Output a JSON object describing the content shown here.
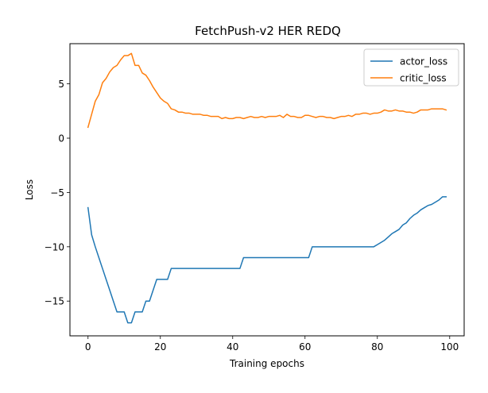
{
  "chart_data": {
    "type": "line",
    "title": "FetchPush-v2 HER REDQ",
    "xlabel": "Training epochs",
    "ylabel": "Loss",
    "xlim": [
      -5,
      104
    ],
    "ylim": [
      -18.2,
      8.7
    ],
    "xticks": [
      0,
      20,
      40,
      60,
      80,
      100
    ],
    "yticks": [
      -15,
      -10,
      -5,
      0,
      5
    ],
    "ytick_labels": [
      "−15",
      "−10",
      "−5",
      "0",
      "5"
    ],
    "grid": false,
    "legend_position": "top-right",
    "series": [
      {
        "name": "actor_loss",
        "color": "#1f77b4",
        "x": [
          0,
          1,
          2,
          3,
          4,
          5,
          6,
          7,
          8,
          9,
          10,
          11,
          12,
          13,
          14,
          15,
          16,
          17,
          18,
          19,
          20,
          21,
          22,
          23,
          24,
          25,
          26,
          27,
          28,
          29,
          30,
          31,
          32,
          33,
          34,
          35,
          36,
          37,
          38,
          39,
          40,
          41,
          42,
          43,
          44,
          45,
          46,
          47,
          48,
          49,
          50,
          51,
          52,
          53,
          54,
          55,
          56,
          57,
          58,
          59,
          60,
          61,
          62,
          63,
          64,
          65,
          66,
          67,
          68,
          69,
          70,
          71,
          72,
          73,
          74,
          75,
          76,
          77,
          78,
          79,
          80,
          81,
          82,
          83,
          84,
          85,
          86,
          87,
          88,
          89,
          90,
          91,
          92,
          93,
          94,
          95,
          96,
          97,
          98,
          99
        ],
        "y": [
          -6.4,
          -8.9,
          -10.0,
          -11.0,
          -12.0,
          -13.0,
          -14.0,
          -15.0,
          -16.0,
          -16.0,
          -16.0,
          -17.0,
          -17.0,
          -16.0,
          -16.0,
          -16.0,
          -15.0,
          -15.0,
          -14.0,
          -13.0,
          -13.0,
          -13.0,
          -13.0,
          -12.0,
          -12.0,
          -12.0,
          -12.0,
          -12.0,
          -12.0,
          -12.0,
          -12.0,
          -12.0,
          -12.0,
          -12.0,
          -12.0,
          -12.0,
          -12.0,
          -12.0,
          -12.0,
          -12.0,
          -12.0,
          -12.0,
          -12.0,
          -11.0,
          -11.0,
          -11.0,
          -11.0,
          -11.0,
          -11.0,
          -11.0,
          -11.0,
          -11.0,
          -11.0,
          -11.0,
          -11.0,
          -11.0,
          -11.0,
          -11.0,
          -11.0,
          -11.0,
          -11.0,
          -11.0,
          -10.0,
          -10.0,
          -10.0,
          -10.0,
          -10.0,
          -10.0,
          -10.0,
          -10.0,
          -10.0,
          -10.0,
          -10.0,
          -10.0,
          -10.0,
          -10.0,
          -10.0,
          -10.0,
          -10.0,
          -10.0,
          -9.8,
          -9.6,
          -9.4,
          -9.1,
          -8.8,
          -8.6,
          -8.4,
          -8.0,
          -7.8,
          -7.4,
          -7.1,
          -6.9,
          -6.6,
          -6.4,
          -6.2,
          -6.1,
          -5.9,
          -5.7,
          -5.4,
          -5.4
        ]
      },
      {
        "name": "critic_loss",
        "color": "#ff7f0e",
        "x": [
          0,
          1,
          2,
          3,
          4,
          5,
          6,
          7,
          8,
          9,
          10,
          11,
          12,
          13,
          14,
          15,
          16,
          17,
          18,
          19,
          20,
          21,
          22,
          23,
          24,
          25,
          26,
          27,
          28,
          29,
          30,
          31,
          32,
          33,
          34,
          35,
          36,
          37,
          38,
          39,
          40,
          41,
          42,
          43,
          44,
          45,
          46,
          47,
          48,
          49,
          50,
          51,
          52,
          53,
          54,
          55,
          56,
          57,
          58,
          59,
          60,
          61,
          62,
          63,
          64,
          65,
          66,
          67,
          68,
          69,
          70,
          71,
          72,
          73,
          74,
          75,
          76,
          77,
          78,
          79,
          80,
          81,
          82,
          83,
          84,
          85,
          86,
          87,
          88,
          89,
          90,
          91,
          92,
          93,
          94,
          95,
          96,
          97,
          98,
          99
        ],
        "y": [
          1.0,
          2.2,
          3.4,
          4.0,
          5.1,
          5.5,
          6.1,
          6.5,
          6.7,
          7.2,
          7.6,
          7.6,
          7.8,
          6.7,
          6.7,
          6.0,
          5.8,
          5.3,
          4.7,
          4.2,
          3.7,
          3.4,
          3.2,
          2.7,
          2.6,
          2.4,
          2.4,
          2.3,
          2.3,
          2.2,
          2.2,
          2.2,
          2.1,
          2.1,
          2.0,
          2.0,
          2.0,
          1.8,
          1.9,
          1.8,
          1.8,
          1.9,
          1.9,
          1.8,
          1.9,
          2.0,
          1.9,
          1.9,
          2.0,
          1.9,
          2.0,
          2.0,
          2.0,
          2.1,
          1.9,
          2.2,
          2.0,
          2.0,
          1.9,
          1.9,
          2.1,
          2.1,
          2.0,
          1.9,
          2.0,
          2.0,
          1.9,
          1.9,
          1.8,
          1.9,
          2.0,
          2.0,
          2.1,
          2.0,
          2.2,
          2.2,
          2.3,
          2.3,
          2.2,
          2.3,
          2.3,
          2.4,
          2.6,
          2.5,
          2.5,
          2.6,
          2.5,
          2.5,
          2.4,
          2.4,
          2.3,
          2.4,
          2.6,
          2.6,
          2.6,
          2.7,
          2.7,
          2.7,
          2.7,
          2.6
        ]
      }
    ]
  }
}
